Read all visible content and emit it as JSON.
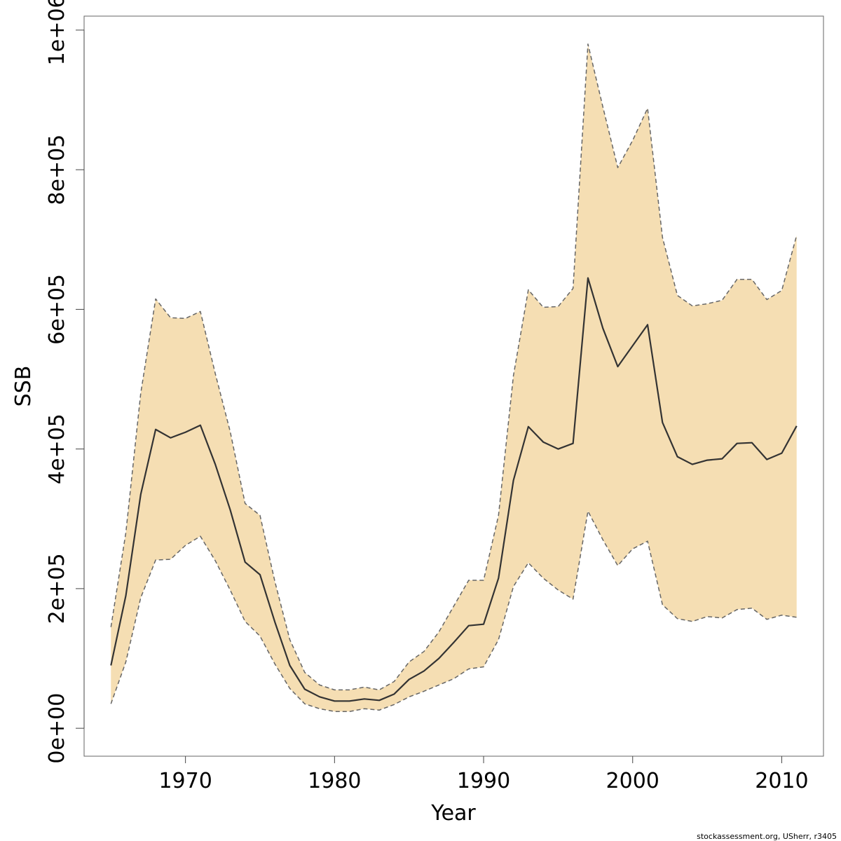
{
  "chart_data": {
    "type": "line",
    "xlabel": "Year",
    "ylabel": "SSB",
    "xlim": [
      1963.2,
      2012.8
    ],
    "ylim": [
      -40000,
      1020000
    ],
    "x_ticks": [
      1970,
      1980,
      1990,
      2000,
      2010
    ],
    "x_tick_labels": [
      "1970",
      "1980",
      "1990",
      "2000",
      "2010"
    ],
    "y_ticks": [
      0,
      200000,
      400000,
      600000,
      800000,
      1000000
    ],
    "y_tick_labels": [
      "0e+00",
      "2e+05",
      "4e+05",
      "6e+05",
      "8e+05",
      "1e+06"
    ],
    "grid": false,
    "band_color": "#F5DEB3",
    "line_color": "#333333",
    "bound_color": "#666666",
    "x": [
      1965,
      1966,
      1967,
      1968,
      1969,
      1970,
      1971,
      1972,
      1973,
      1974,
      1975,
      1976,
      1977,
      1978,
      1979,
      1980,
      1981,
      1982,
      1983,
      1984,
      1985,
      1986,
      1987,
      1988,
      1989,
      1990,
      1991,
      1992,
      1993,
      1994,
      1995,
      1996,
      1997,
      1998,
      1999,
      2000,
      2001,
      2002,
      2003,
      2004,
      2005,
      2006,
      2007,
      2008,
      2009,
      2010,
      2011
    ],
    "series": [
      {
        "role": "estimate",
        "style": "solid",
        "values": [
          90000,
          190000,
          335000,
          428000,
          416000,
          424000,
          434000,
          378000,
          313000,
          238000,
          220000,
          152000,
          90000,
          56000,
          45000,
          39000,
          39000,
          42000,
          40000,
          49000,
          70000,
          82000,
          100000,
          123000,
          147000,
          149000,
          215000,
          355000,
          432000,
          410000,
          400000,
          408000,
          645000,
          573000,
          518000,
          548000,
          578000,
          438000,
          389000,
          378000,
          384000,
          386000,
          408000,
          409000,
          385000,
          394000,
          433000
        ]
      },
      {
        "role": "upper",
        "style": "dashed",
        "values": [
          145000,
          280000,
          480000,
          615000,
          588000,
          587000,
          597000,
          508000,
          425000,
          322000,
          305000,
          210000,
          127000,
          80000,
          62000,
          55000,
          55000,
          59000,
          55000,
          67000,
          95000,
          110000,
          138000,
          175000,
          212000,
          212000,
          305000,
          505000,
          628000,
          603000,
          604000,
          630000,
          980000,
          890000,
          803000,
          842000,
          888000,
          703000,
          620000,
          605000,
          608000,
          613000,
          643000,
          643000,
          614000,
          627000,
          706000
        ]
      },
      {
        "role": "lower",
        "style": "dashed",
        "values": [
          35000,
          95000,
          187000,
          241000,
          242000,
          262000,
          275000,
          240000,
          198000,
          153000,
          132000,
          92000,
          57000,
          35000,
          28000,
          24000,
          24000,
          28000,
          26000,
          34000,
          45000,
          53000,
          62000,
          71000,
          85000,
          88000,
          127000,
          203000,
          237000,
          215000,
          198000,
          185000,
          311000,
          270000,
          233000,
          257000,
          268000,
          177000,
          157000,
          153000,
          160000,
          158000,
          170000,
          172000,
          156000,
          162000,
          159000
        ]
      }
    ]
  },
  "footer": {
    "credit": "stockassessment.org, USherr, r3405"
  }
}
